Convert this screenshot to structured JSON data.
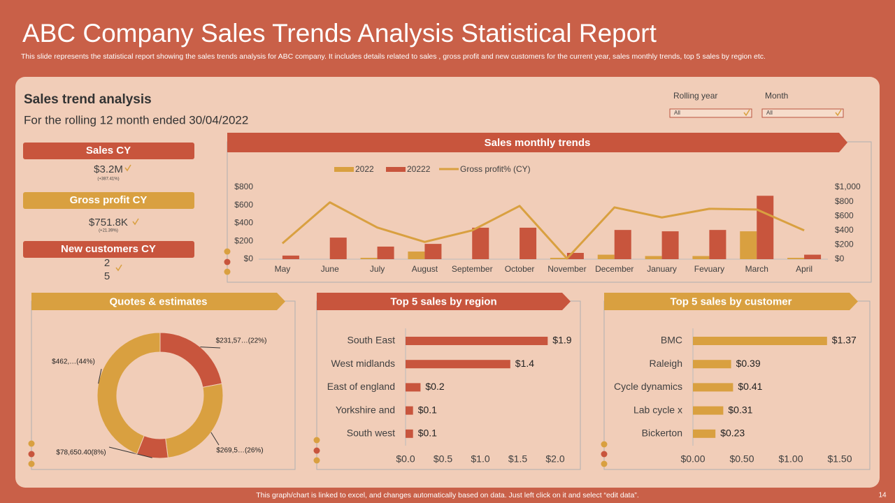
{
  "header": {
    "title": "ABC Company Sales Trends Analysis Statistical Report",
    "subtitle": "This slide represents the statistical report showing the sales trends analysis for ABC company. It includes details related to sales , gross profit and new customers for the current year,  sales monthly trends, top 5 sales by region etc."
  },
  "section": {
    "title": "Sales trend analysis",
    "subtitle": "For the rolling 12 month ended 30/04/2022"
  },
  "filters": [
    {
      "label": "Rolling year",
      "value": "All"
    },
    {
      "label": "Month",
      "value": "All"
    }
  ],
  "kpis": [
    {
      "label": "Sales CY",
      "value": "$3.2M",
      "change": "(+387.41%)"
    },
    {
      "label": "Gross profit CY",
      "value": "$751.8K",
      "change": "(+21.39%)"
    },
    {
      "label": "New customers CY",
      "value_lines": [
        "2",
        "5"
      ]
    }
  ],
  "chart_data": [
    {
      "type": "combo",
      "title": "Sales monthly trends",
      "categories": [
        "May",
        "June",
        "July",
        "August",
        "September",
        "October",
        "November",
        "December",
        "January",
        "Fevuary",
        "March",
        "April"
      ],
      "series": [
        {
          "name": "2022",
          "type": "bar",
          "color": "#D9A040",
          "values": [
            0,
            0,
            15,
            85,
            0,
            0,
            15,
            50,
            35,
            35,
            310,
            15
          ]
        },
        {
          "name": "20222",
          "type": "bar",
          "color": "#C8553D",
          "values": [
            40,
            240,
            140,
            170,
            350,
            350,
            70,
            325,
            310,
            325,
            705,
            50
          ]
        },
        {
          "name": "Gross profit% (CY)",
          "type": "line",
          "color": "#D9A040",
          "axis": "y2",
          "values": [
            220,
            790,
            440,
            240,
            400,
            740,
            10,
            720,
            580,
            700,
            690,
            400
          ]
        }
      ],
      "ylim": [
        0,
        800
      ],
      "yticks": [
        {
          "value": 0,
          "label": "$0"
        },
        {
          "value": 200,
          "label": "$200"
        },
        {
          "value": 400,
          "label": "$400"
        },
        {
          "value": 600,
          "label": "$600"
        },
        {
          "value": 800,
          "label": "$800"
        }
      ],
      "y2lim": [
        0,
        1000
      ],
      "y2ticks": [
        {
          "value": 0,
          "label": "$0"
        },
        {
          "value": 200,
          "label": "$200"
        },
        {
          "value": 400,
          "label": "$400"
        },
        {
          "value": 600,
          "label": "$600"
        },
        {
          "value": 800,
          "label": "$800"
        },
        {
          "value": 1000,
          "label": "$1,000"
        }
      ]
    },
    {
      "type": "donut",
      "title": "Quotes & estimates",
      "values": [
        22,
        26,
        8,
        44
      ],
      "value_labels": [
        "$231,57…(22%)",
        "$269,5…(26%)",
        "$78,650.40(8%)",
        "$462,…(44%)"
      ],
      "colors": [
        "#C8553D",
        "#D9A040",
        "#C8553D",
        "#D9A040"
      ]
    },
    {
      "type": "hbar",
      "title": "Top 5 sales by region",
      "color": "#C8553D",
      "categories": [
        "South East",
        "West midlands",
        "East of england",
        "Yorkshire and",
        "South west"
      ],
      "values": [
        1.9,
        1.4,
        0.2,
        0.1,
        0.1
      ],
      "value_labels": [
        "$1.9",
        "$1.4",
        "$0.2",
        "$0.1",
        "$0.1"
      ],
      "xlim": [
        0,
        2
      ],
      "xticks": [
        {
          "value": 0,
          "label": "$0.0"
        },
        {
          "value": 0.5,
          "label": "$0.5"
        },
        {
          "value": 1,
          "label": "$1.0"
        },
        {
          "value": 1.5,
          "label": "$1.5"
        },
        {
          "value": 2,
          "label": "$2.0"
        }
      ]
    },
    {
      "type": "hbar",
      "title": "Top 5 sales by customer",
      "color": "#D9A040",
      "categories": [
        "BMC",
        "Raleigh",
        "Cycle dynamics",
        "Lab cycle x",
        "Bickerton"
      ],
      "values": [
        1.37,
        0.39,
        0.41,
        0.31,
        0.23
      ],
      "value_labels": [
        "$1.37",
        "$0.39",
        "$0.41",
        "$0.31",
        "$0.23"
      ],
      "xlim": [
        0,
        1.5
      ],
      "xticks": [
        {
          "value": 0,
          "label": "$0.00"
        },
        {
          "value": 0.5,
          "label": "$0.50"
        },
        {
          "value": 1,
          "label": "$1.00"
        },
        {
          "value": 1.5,
          "label": "$1.50"
        }
      ]
    }
  ],
  "footer": {
    "note": "This graph/chart is linked to excel,  and changes automatically based on data. Just left click on it and select “edit data”.",
    "page": "14"
  }
}
